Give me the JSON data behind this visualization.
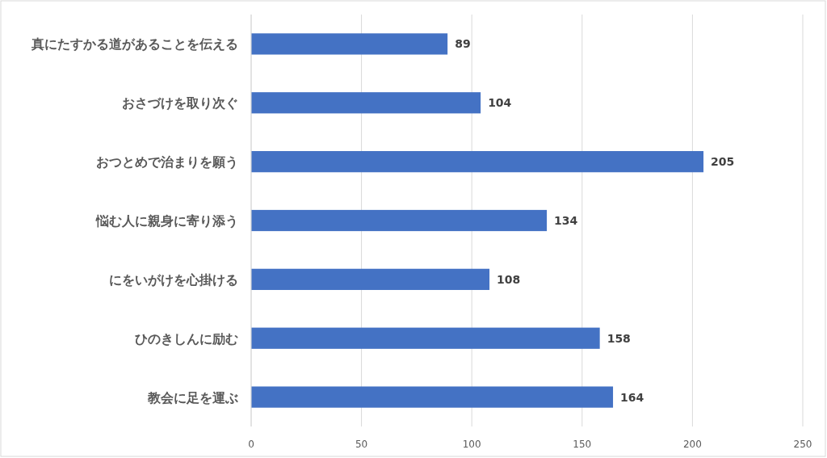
{
  "chart_data": {
    "type": "bar",
    "orientation": "horizontal",
    "categories": [
      "真にたすかる道があることを伝える",
      "おさづけを取り次ぐ",
      "おつとめで治まりを願う",
      "悩む人に親身に寄り添う",
      "にをいがけを心掛ける",
      "ひのきしんに励む",
      "教会に足を運ぶ"
    ],
    "values": [
      89,
      104,
      205,
      134,
      108,
      158,
      164
    ],
    "color": "#4472c4",
    "xlim": [
      0,
      250
    ],
    "xticks": [
      0,
      50,
      100,
      150,
      200,
      250
    ],
    "grid": "x",
    "data_labels": true
  }
}
